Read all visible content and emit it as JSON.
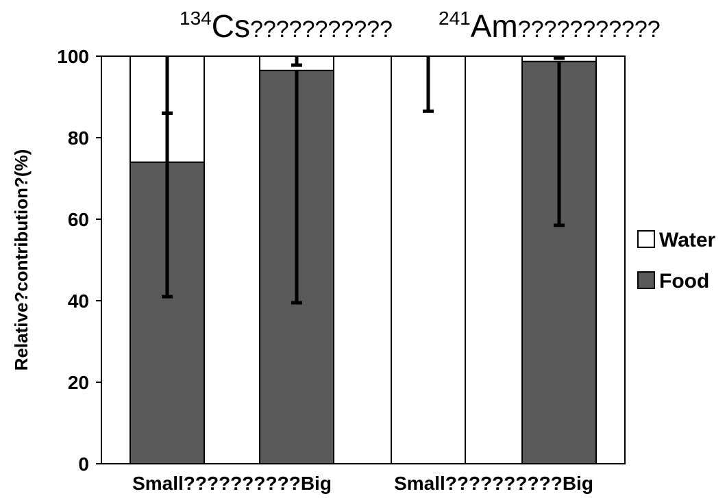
{
  "chart_data": {
    "type": "bar",
    "stacked": true,
    "panel_titles": [
      {
        "sup": "134",
        "main": "Cs",
        "garbled": "???????????"
      },
      {
        "sup": "241",
        "main": "Am",
        "garbled": "???????????"
      }
    ],
    "categories": [
      "Small",
      "Big",
      "Small",
      "Big"
    ],
    "category_labels": [
      "Small???????",
      "Big",
      "Small???????",
      "Big"
    ],
    "group_labels": [
      "Small??????????Big",
      "Small??????????Big"
    ],
    "series": [
      {
        "name": "Food",
        "color": "#595959",
        "values": [
          74,
          96.5,
          0,
          98.7
        ]
      },
      {
        "name": "Water",
        "color": "#ffffff",
        "values": [
          26,
          3.5,
          100,
          1.3
        ]
      }
    ],
    "error_bars": [
      {
        "category_index": 0,
        "center": 74,
        "low": 41,
        "high": 86
      },
      {
        "category_index": 0,
        "center": 100,
        "low": 86,
        "high": 100
      },
      {
        "category_index": 1,
        "center": 96.5,
        "low": 39.5,
        "high": 96.5
      },
      {
        "category_index": 1,
        "center": 100,
        "low": 97.8,
        "high": 100
      },
      {
        "category_index": 2,
        "center": 100,
        "low": 86.5,
        "high": 100
      },
      {
        "category_index": 3,
        "center": 98.7,
        "low": 58.5,
        "high": 98.7
      },
      {
        "category_index": 3,
        "center": 100,
        "low": 99.5,
        "high": 100
      }
    ],
    "ylabel": "Relative?contribution?(%)",
    "xlabel": "",
    "ylim": [
      0,
      100
    ],
    "yticks": [
      0,
      20,
      40,
      60,
      80,
      100
    ],
    "legend_position": "right",
    "legend": [
      {
        "name": "Water",
        "color": "#ffffff"
      },
      {
        "name": "Food",
        "color": "#595959"
      }
    ],
    "grid": false
  }
}
